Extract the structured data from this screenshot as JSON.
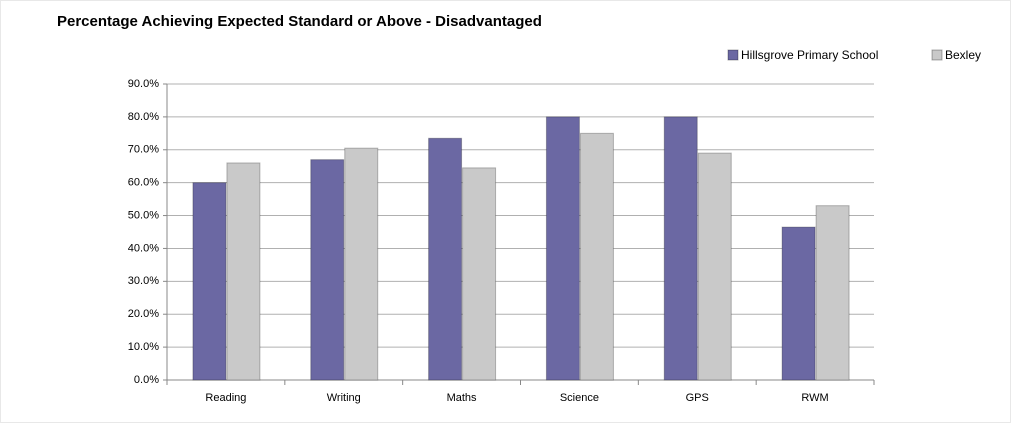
{
  "chart_data": {
    "type": "bar",
    "title": "Percentage Achieving Expected Standard or Above - Disadvantaged",
    "categories": [
      "Reading",
      "Writing",
      "Maths",
      "Science",
      "GPS",
      "RWM"
    ],
    "series": [
      {
        "name": "Hillsgrove Primary School",
        "color": "#6b68a3",
        "values": [
          60,
          67,
          73.5,
          80,
          80,
          46.5
        ]
      },
      {
        "name": "Bexley",
        "color": "#c9c9c9",
        "values": [
          66,
          70.5,
          64.5,
          75,
          69,
          53
        ]
      }
    ],
    "ylim": [
      0,
      90
    ],
    "yticks": [
      {
        "value": 0,
        "label": "0.0%"
      },
      {
        "value": 10,
        "label": "10.0%"
      },
      {
        "value": 20,
        "label": "20.0%"
      },
      {
        "value": 30,
        "label": "30.0%"
      },
      {
        "value": 40,
        "label": "40.0%"
      },
      {
        "value": 50,
        "label": "50.0%"
      },
      {
        "value": 60,
        "label": "60.0%"
      },
      {
        "value": 70,
        "label": "70.0%"
      },
      {
        "value": 80,
        "label": "80.0%"
      },
      {
        "value": 90,
        "label": "90.0%"
      }
    ],
    "grid": true,
    "legend": "top-right"
  }
}
